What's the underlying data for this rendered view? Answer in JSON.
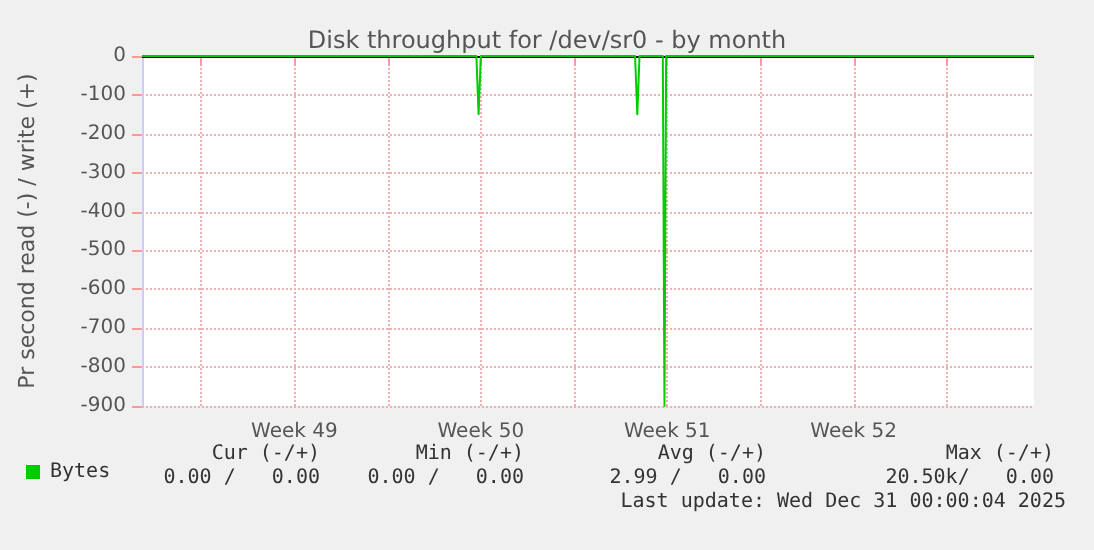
{
  "chart_data": {
    "type": "line",
    "title": "Disk throughput for /dev/sr0 - by month",
    "ylabel": "Pr second read (-) / write (+)",
    "xlim": [
      "2025-11-28T18:40",
      "2026-01-01T06:30"
    ],
    "xticks": [
      {
        "value": "2025-12-01",
        "label": null
      },
      {
        "value": "2025-12-04T12:00",
        "label": "Week 49"
      },
      {
        "value": "2025-12-08",
        "label": null
      },
      {
        "value": "2025-12-11T12:00",
        "label": "Week 50"
      },
      {
        "value": "2025-12-15",
        "label": null
      },
      {
        "value": "2025-12-18T12:00",
        "label": "Week 51"
      },
      {
        "value": "2025-12-22",
        "label": null
      },
      {
        "value": "2025-12-25T12:00",
        "label": "Week 52"
      },
      {
        "value": "2025-12-29",
        "label": null
      }
    ],
    "ylim": [
      -900,
      0
    ],
    "yticks": [
      -900,
      -800,
      -700,
      -600,
      -500,
      -400,
      -300,
      -200,
      -100,
      0
    ],
    "grid": true,
    "legend": "bottom left",
    "marker": "none",
    "line_style": "solid",
    "series": [
      {
        "name": "Bytes",
        "color": "#00cc00",
        "x": [
          "2025-11-28T18:40",
          "2025-12-11T08:00",
          "2025-12-11T10:00",
          "2025-12-11T12:00",
          "2025-12-17T07:00",
          "2025-12-17T09:00",
          "2025-12-17T11:00",
          "2025-12-18T08:00",
          "2025-12-18T09:30",
          "2025-12-18T11:00",
          "2026-01-01T06:30"
        ],
        "values": [
          0,
          0,
          -150,
          0,
          0,
          -150,
          0,
          0,
          -900,
          0,
          0
        ]
      }
    ],
    "ref_lines": [
      {
        "axis": "y",
        "value": 0,
        "label": null,
        "color": "#000000"
      }
    ],
    "annotations": [
      "Cur (-/+)",
      "Min (-/+)",
      "Avg (-/+)",
      "Max (-/+)",
      "0.00 /   0.00",
      "0.00 /   0.00",
      "2.99 /   0.00",
      "20.50k/   0.00",
      "Last update: Wed Dec 31 00:00:04 2025"
    ]
  }
}
